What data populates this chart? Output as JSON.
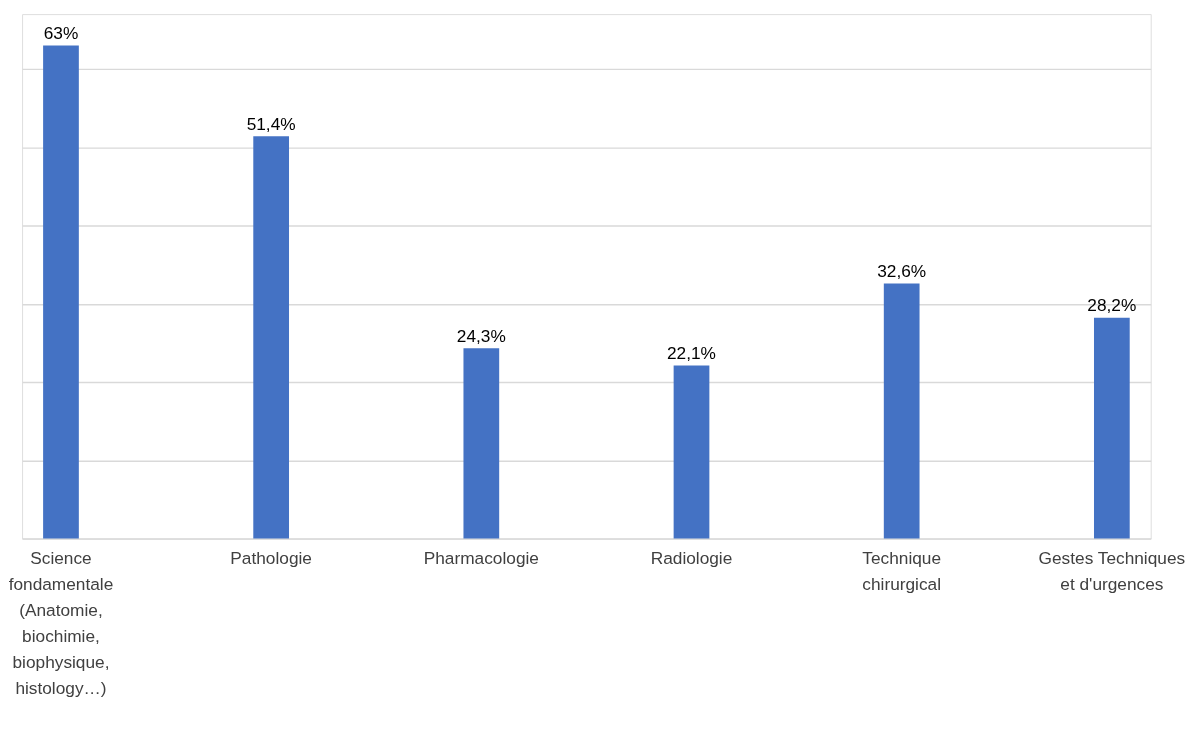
{
  "chart_data": {
    "type": "bar",
    "categories": [
      "Science fondamentale (Anatomie, biochimie, biophysique, histology…)",
      "Pathologie",
      "Pharmacologie",
      "Radiologie",
      "Technique chirurgical",
      "Gestes Techniques et d'urgences"
    ],
    "values": [
      63,
      51.4,
      24.3,
      22.1,
      32.6,
      28.2
    ],
    "value_labels": [
      "63%",
      "51,4%",
      "24,3%",
      "22,1%",
      "32,6%",
      "28,2%"
    ],
    "color": "#4472c4",
    "ylim": [
      0,
      67
    ],
    "yticks": [
      {
        "value": 0,
        "label": null
      },
      {
        "value": 10,
        "label": null
      },
      {
        "value": 20,
        "label": null
      },
      {
        "value": 30,
        "label": null
      },
      {
        "value": 40,
        "label": null
      },
      {
        "value": 50,
        "label": null
      },
      {
        "value": 60,
        "label": null
      }
    ],
    "grid": "y",
    "tick_labels": "x"
  }
}
